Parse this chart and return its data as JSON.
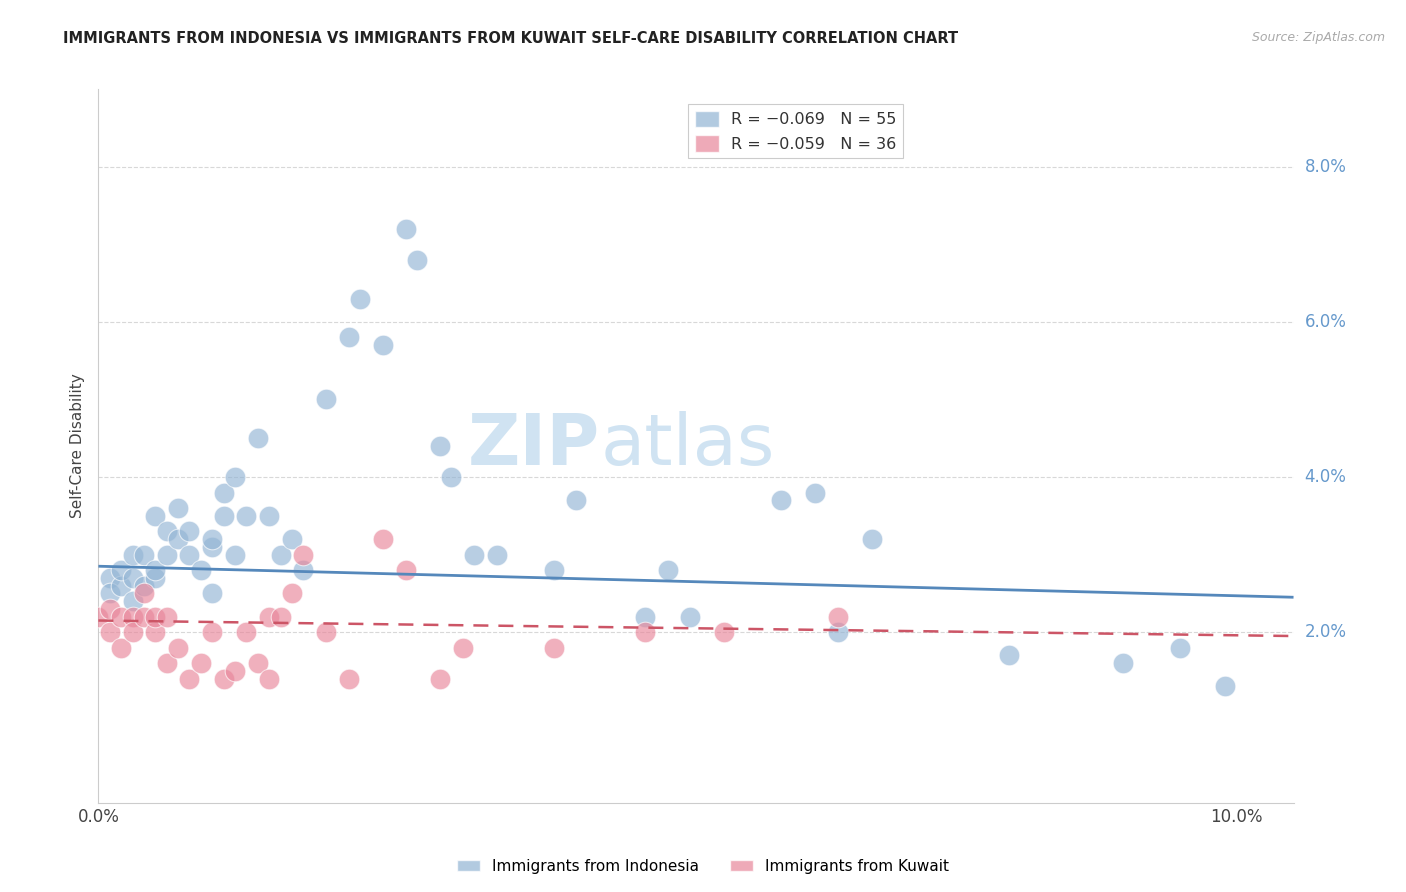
{
  "title": "IMMIGRANTS FROM INDONESIA VS IMMIGRANTS FROM KUWAIT SELF-CARE DISABILITY CORRELATION CHART",
  "source": "Source: ZipAtlas.com",
  "ylabel": "Self-Care Disability",
  "xlim": [
    0.0,
    0.105
  ],
  "ylim": [
    -0.002,
    0.09
  ],
  "indonesia_color": "#92b4d4",
  "kuwait_color": "#e8869a",
  "trendline_indonesia_color": "#5588bb",
  "trendline_kuwait_color": "#cc5566",
  "watermark_zip": "ZIP",
  "watermark_atlas": "atlas",
  "background_color": "#ffffff",
  "grid_color": "#d8d8d8",
  "right_axis_label_color": "#6699cc",
  "title_color": "#222222",
  "source_color": "#aaaaaa",
  "indo_x": [
    0.001,
    0.001,
    0.002,
    0.002,
    0.003,
    0.003,
    0.003,
    0.004,
    0.004,
    0.005,
    0.005,
    0.005,
    0.006,
    0.006,
    0.007,
    0.007,
    0.008,
    0.008,
    0.009,
    0.01,
    0.01,
    0.01,
    0.011,
    0.011,
    0.012,
    0.012,
    0.013,
    0.014,
    0.015,
    0.016,
    0.017,
    0.018,
    0.02,
    0.022,
    0.023,
    0.025,
    0.027,
    0.028,
    0.03,
    0.031,
    0.033,
    0.035,
    0.04,
    0.042,
    0.048,
    0.05,
    0.052,
    0.06,
    0.063,
    0.065,
    0.068,
    0.08,
    0.09,
    0.095,
    0.099
  ],
  "indo_y": [
    0.027,
    0.025,
    0.026,
    0.028,
    0.03,
    0.027,
    0.024,
    0.026,
    0.03,
    0.027,
    0.028,
    0.035,
    0.033,
    0.03,
    0.032,
    0.036,
    0.033,
    0.03,
    0.028,
    0.031,
    0.032,
    0.025,
    0.038,
    0.035,
    0.04,
    0.03,
    0.035,
    0.045,
    0.035,
    0.03,
    0.032,
    0.028,
    0.05,
    0.058,
    0.063,
    0.057,
    0.072,
    0.068,
    0.044,
    0.04,
    0.03,
    0.03,
    0.028,
    0.037,
    0.022,
    0.028,
    0.022,
    0.037,
    0.038,
    0.02,
    0.032,
    0.017,
    0.016,
    0.018,
    0.013
  ],
  "kuw_x": [
    0.0,
    0.001,
    0.001,
    0.002,
    0.002,
    0.003,
    0.003,
    0.004,
    0.004,
    0.005,
    0.005,
    0.006,
    0.006,
    0.007,
    0.008,
    0.009,
    0.01,
    0.011,
    0.012,
    0.013,
    0.014,
    0.015,
    0.015,
    0.016,
    0.017,
    0.018,
    0.02,
    0.022,
    0.025,
    0.027,
    0.03,
    0.032,
    0.04,
    0.048,
    0.055,
    0.065
  ],
  "kuw_y": [
    0.022,
    0.023,
    0.02,
    0.022,
    0.018,
    0.022,
    0.02,
    0.025,
    0.022,
    0.02,
    0.022,
    0.016,
    0.022,
    0.018,
    0.014,
    0.016,
    0.02,
    0.014,
    0.015,
    0.02,
    0.016,
    0.014,
    0.022,
    0.022,
    0.025,
    0.03,
    0.02,
    0.014,
    0.032,
    0.028,
    0.014,
    0.018,
    0.018,
    0.02,
    0.02,
    0.022
  ],
  "indo_trendline_x": [
    0.0,
    0.105
  ],
  "indo_trendline_y": [
    0.0285,
    0.0245
  ],
  "kuw_trendline_x": [
    0.0,
    0.105
  ],
  "kuw_trendline_y": [
    0.0215,
    0.0195
  ]
}
